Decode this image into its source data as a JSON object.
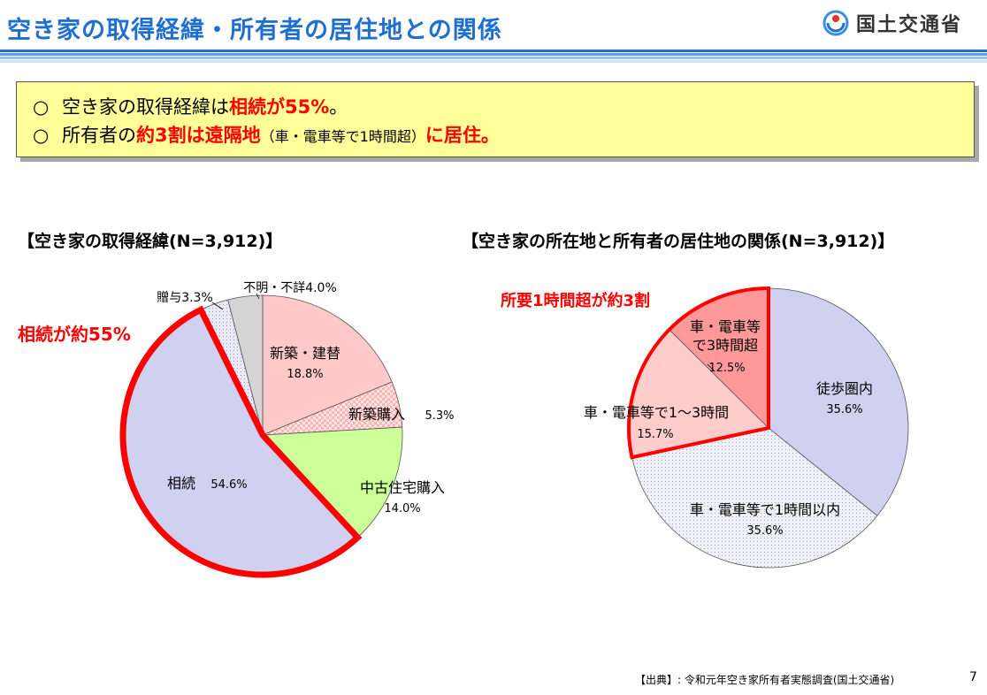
{
  "header": {
    "title": "空き家の取得経緯・所有者の居住地との関係",
    "logo_text": "国土交通省",
    "colors": {
      "title": "#1f6fd1",
      "highlight": "#ff0000",
      "box": "#ffff99"
    }
  },
  "summary": {
    "line1": {
      "bullet": "○",
      "t1": "空き家の取得経緯は",
      "em1": "相続が55%",
      "t2": "。"
    },
    "line2": {
      "bullet": "○",
      "t1": "所有者の",
      "em1": "約3割は遠隔地",
      "t2": "（車・電車等で1時間超）",
      "em2": "に居住。"
    }
  },
  "chart_data": [
    {
      "type": "pie",
      "title": "【空き家の取得経緯(N=3,912)】",
      "unit": "%",
      "slices": [
        {
          "label": "新築・建替",
          "value": 18.8,
          "value_label": "18.8%",
          "color": "#ffc9c9"
        },
        {
          "label": "新築購入",
          "value": 5.3,
          "value_label": "5.3%",
          "color": "#ffd9d9"
        },
        {
          "label": "中古住宅購入",
          "value": 14.0,
          "value_label": "14.0%",
          "color": "#ccff99"
        },
        {
          "label": "相続",
          "value": 54.6,
          "value_label": "54.6%",
          "color": "#d0d0f0"
        },
        {
          "label": "贈与",
          "value": 3.3,
          "value_label": "贈与3.3%",
          "color": "#e6e6f6"
        },
        {
          "label": "不明・不詳",
          "value": 4.0,
          "value_label": "不明・不詳4.0%",
          "color": "#d4d4d4"
        }
      ],
      "callout": {
        "text": "相続が約55%",
        "color": "#ff0000"
      }
    },
    {
      "type": "pie",
      "title": "【空き家の所在地と所有者の居住地の関係(N=3,912)】",
      "unit": "%",
      "slices": [
        {
          "label": "徒歩圏内",
          "value": 35.6,
          "value_label": "35.6%",
          "color": "#d0d0f0"
        },
        {
          "label": "車・電車等で1時間以内",
          "value": 35.6,
          "value_label": "35.6%",
          "color": "#ececf6"
        },
        {
          "label": "車・電車等で1～3時間",
          "value": 15.7,
          "value_label": "15.7%",
          "color": "#ffcccc"
        },
        {
          "label": "車・電車等で3時間超",
          "label_lines": [
            "車・電車等",
            "で3時間超"
          ],
          "value": 12.5,
          "value_label": "12.5%",
          "color": "#ff9999"
        }
      ],
      "callout": {
        "text": "所要1時間超が約3割",
        "color": "#ff0000"
      }
    }
  ],
  "footer": {
    "source": "【出典】: 令和元年空き家所有者実態調査(国土交通省)",
    "page": "7"
  }
}
